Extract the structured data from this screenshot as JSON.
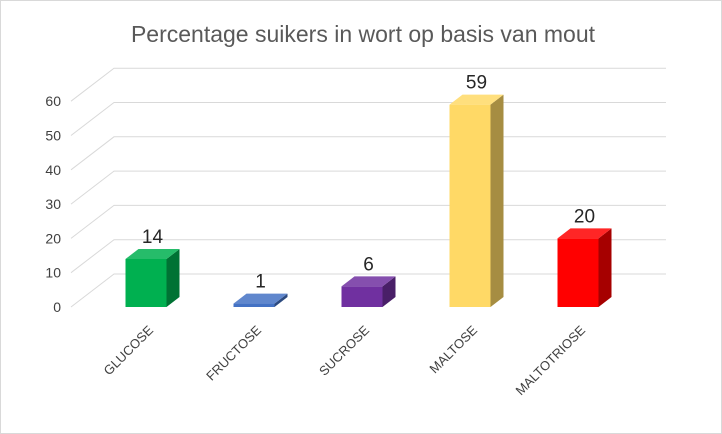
{
  "chart_data": {
    "type": "bar",
    "style": "3d-column",
    "title": "Percentage suikers in wort op basis van mout",
    "xlabel": "",
    "ylabel": "",
    "categories": [
      "GLUCOSE",
      "FRUCTOSE",
      "SUCROSE",
      "MALTOSE",
      "MALTOTRIOSE"
    ],
    "values": [
      14,
      1,
      6,
      59,
      20
    ],
    "colors": [
      "#00B050",
      "#4472C4",
      "#7030A0",
      "#FFD966",
      "#FF0000"
    ],
    "ylim": [
      0,
      60
    ],
    "y_ticks": [
      0,
      10,
      20,
      30,
      40,
      50,
      60
    ],
    "grid": true,
    "data_labels": true,
    "legend": "none"
  }
}
